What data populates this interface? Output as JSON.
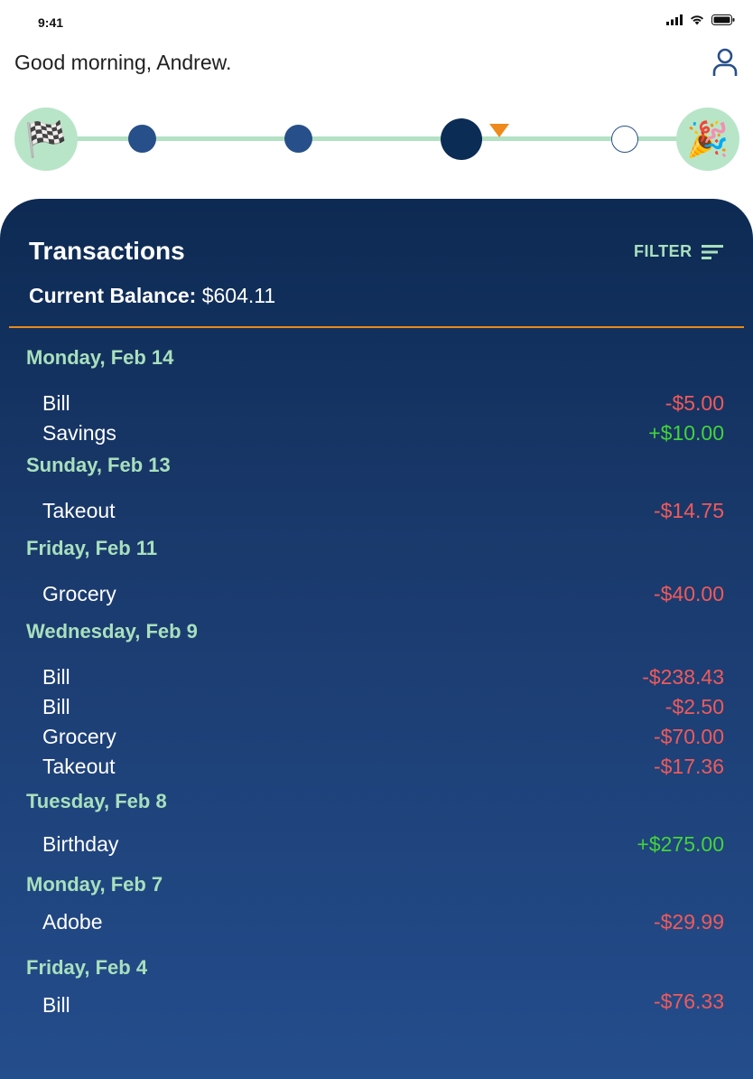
{
  "status": {
    "time": "9:41"
  },
  "header": {
    "greeting": "Good morning, Andrew."
  },
  "progress": {
    "start_emoji": "🏁",
    "end_emoji": "🎉"
  },
  "transactions": {
    "title": "Transactions",
    "filter_label": "FILTER",
    "balance_label": "Current Balance:",
    "balance_value": "$604.11",
    "days": [
      {
        "date": "Monday, Feb 14",
        "items": [
          {
            "name": "Bill",
            "amount": "-$5.00",
            "sign": "neg"
          },
          {
            "name": "Savings",
            "amount": "+$10.00",
            "sign": "pos"
          }
        ]
      },
      {
        "date": "Sunday, Feb 13",
        "items": [
          {
            "name": "Takeout",
            "amount": "-$14.75",
            "sign": "neg"
          }
        ]
      },
      {
        "date": "Friday, Feb 11",
        "items": [
          {
            "name": "Grocery",
            "amount": "-$40.00",
            "sign": "neg"
          }
        ]
      },
      {
        "date": "Wednesday, Feb 9",
        "items": [
          {
            "name": "Bill",
            "amount": "-$238.43",
            "sign": "neg"
          },
          {
            "name": "Bill",
            "amount": "-$2.50",
            "sign": "neg"
          },
          {
            "name": "Grocery",
            "amount": "-$70.00",
            "sign": "neg"
          },
          {
            "name": "Takeout",
            "amount": "-$17.36",
            "sign": "neg"
          }
        ]
      },
      {
        "date": "Tuesday, Feb 8",
        "items": [
          {
            "name": "Birthday",
            "amount": "+$275.00",
            "sign": "pos"
          }
        ]
      },
      {
        "date": "Monday, Feb 7",
        "items": [
          {
            "name": "Adobe",
            "amount": "-$29.99",
            "sign": "neg"
          }
        ]
      },
      {
        "date": "Friday, Feb 4",
        "items": [
          {
            "name": "Bill",
            "amount": "-$76.33",
            "sign": "neg"
          }
        ]
      }
    ]
  },
  "colors": {
    "panel_top": "#0d2a53",
    "panel_bottom": "#244d8c",
    "accent_green": "#a8e0bd",
    "negative": "#f05a5a",
    "positive": "#43d43a",
    "divider": "#e88a1a"
  }
}
